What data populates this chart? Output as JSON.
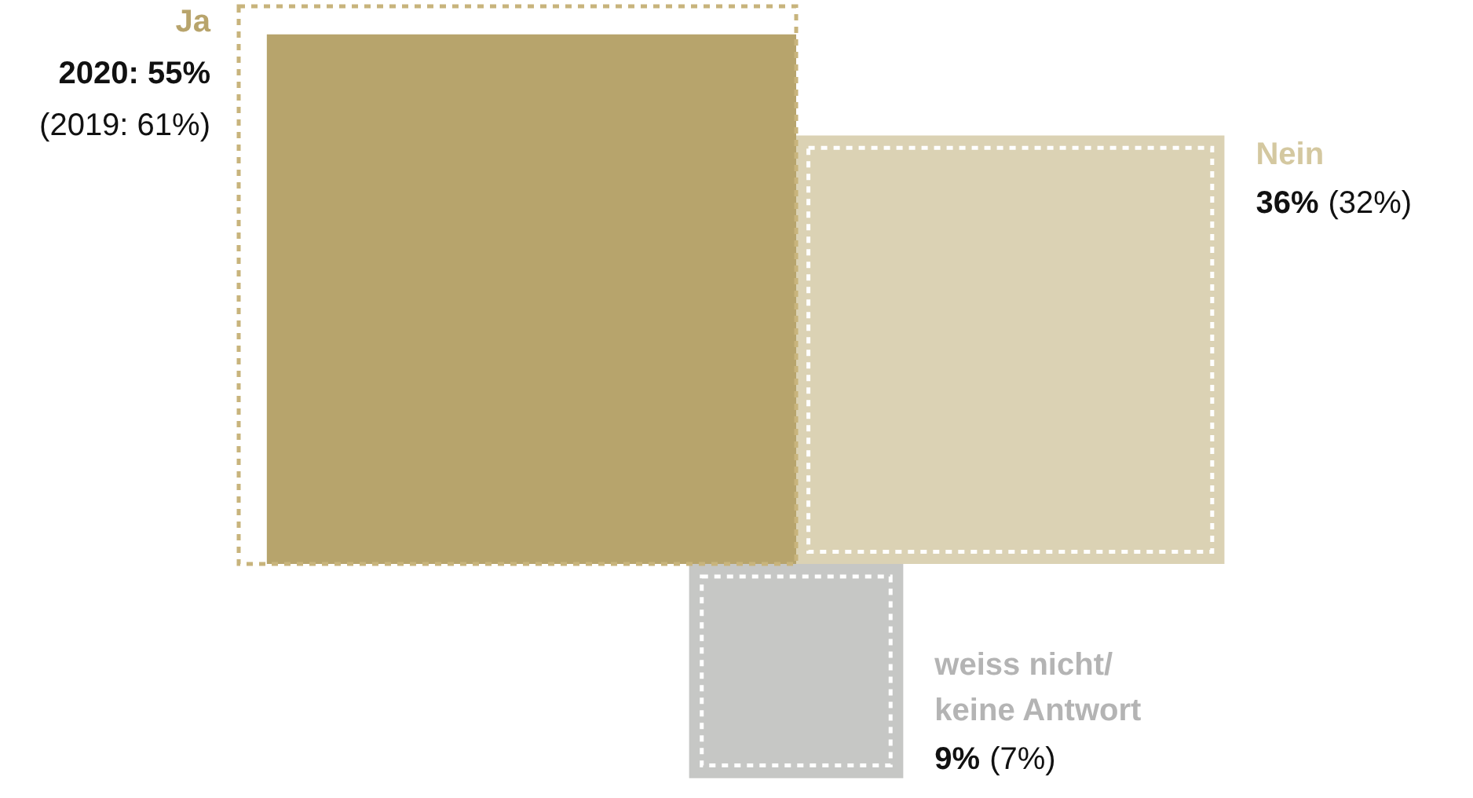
{
  "chart_data": {
    "type": "other",
    "categories": [
      "Ja",
      "Nein",
      "weiss nicht/ keine Antwort"
    ],
    "colors": [
      "#b8a46c",
      "#d4c8a0",
      "#b4b4b4"
    ],
    "series": [
      {
        "values": [
          55,
          36,
          9
        ],
        "colors": [
          "#b7a46c",
          "#dbd2b4",
          "#c6c7c5"
        ],
        "value_labels": [
          "2020: 55%",
          "36%",
          "9%"
        ]
      },
      {
        "line_style": "dashed",
        "values": [
          61,
          32,
          7
        ],
        "colors": [
          "#c8b47c",
          "#ffffff",
          "#ffffff"
        ],
        "value_labels": [
          "(2019: 61%)",
          "(32%)",
          "(7%)"
        ]
      }
    ]
  }
}
